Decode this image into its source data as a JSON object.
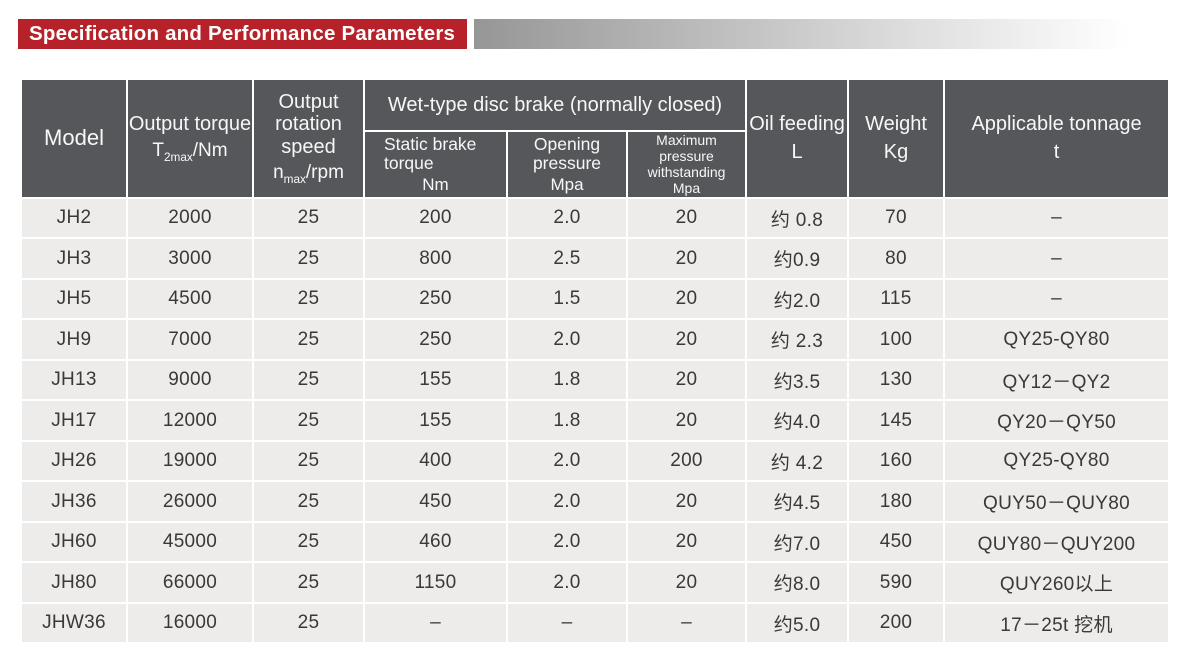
{
  "header": {
    "title": "Specification and Performance Parameters",
    "accent_color": "#b7222a",
    "header_bg_color": "#55575a",
    "row_bg_color": "#eeeceb"
  },
  "table": {
    "header": {
      "model": "Model",
      "output_torque": {
        "title": "Output torque",
        "symbol": {
          "base": "T",
          "sub": "2max",
          "rest": "/Nm"
        }
      },
      "rotation_speed": {
        "title": "Output rotation speed",
        "symbol": {
          "base": "n",
          "sub": "max",
          "rest": "/rpm"
        }
      },
      "brake_group": "Wet-type disc brake (normally closed)",
      "static_brake": {
        "title": "Static brake torque",
        "unit": "Nm"
      },
      "opening_pressure": {
        "title": "Opening pressure",
        "unit": "Mpa"
      },
      "max_pressure": {
        "title": "Maximum pressure withstanding",
        "unit": "Mpa"
      },
      "oil_feeding": {
        "title": "Oil feeding",
        "unit": "L"
      },
      "weight": {
        "title": "Weight",
        "unit": "Kg"
      },
      "tonnage": {
        "title": "Applicable tonnage",
        "unit": "t"
      }
    },
    "rows": [
      [
        "JH2",
        "2000",
        "25",
        "200",
        "2.0",
        "20",
        "约 0.8",
        "70",
        "–"
      ],
      [
        "JH3",
        "3000",
        "25",
        "800",
        "2.5",
        "20",
        "约0.9",
        "80",
        "–"
      ],
      [
        "JH5",
        "4500",
        "25",
        "250",
        "1.5",
        "20",
        "约2.0",
        "115",
        "–"
      ],
      [
        "JH9",
        "7000",
        "25",
        "250",
        "2.0",
        "20",
        "约 2.3",
        "100",
        "QY25-QY80"
      ],
      [
        "JH13",
        "9000",
        "25",
        "155",
        "1.8",
        "20",
        "约3.5",
        "130",
        "QY12－QY2"
      ],
      [
        "JH17",
        "12000",
        "25",
        "155",
        "1.8",
        "20",
        "约4.0",
        "145",
        "QY20－QY50"
      ],
      [
        "JH26",
        "19000",
        "25",
        "400",
        "2.0",
        "200",
        "约 4.2",
        "160",
        "QY25-QY80"
      ],
      [
        "JH36",
        "26000",
        "25",
        "450",
        "2.0",
        "20",
        "约4.5",
        "180",
        "QUY50－QUY80"
      ],
      [
        "JH60",
        "45000",
        "25",
        "460",
        "2.0",
        "20",
        "约7.0",
        "450",
        "QUY80－QUY200"
      ],
      [
        "JH80",
        "66000",
        "25",
        "1150",
        "2.0",
        "20",
        "约8.0",
        "590",
        "QUY260以上"
      ],
      [
        "JHW36",
        "16000",
        "25",
        "–",
        "–",
        "–",
        "约5.0",
        "200",
        "17－25t 挖机"
      ]
    ]
  }
}
